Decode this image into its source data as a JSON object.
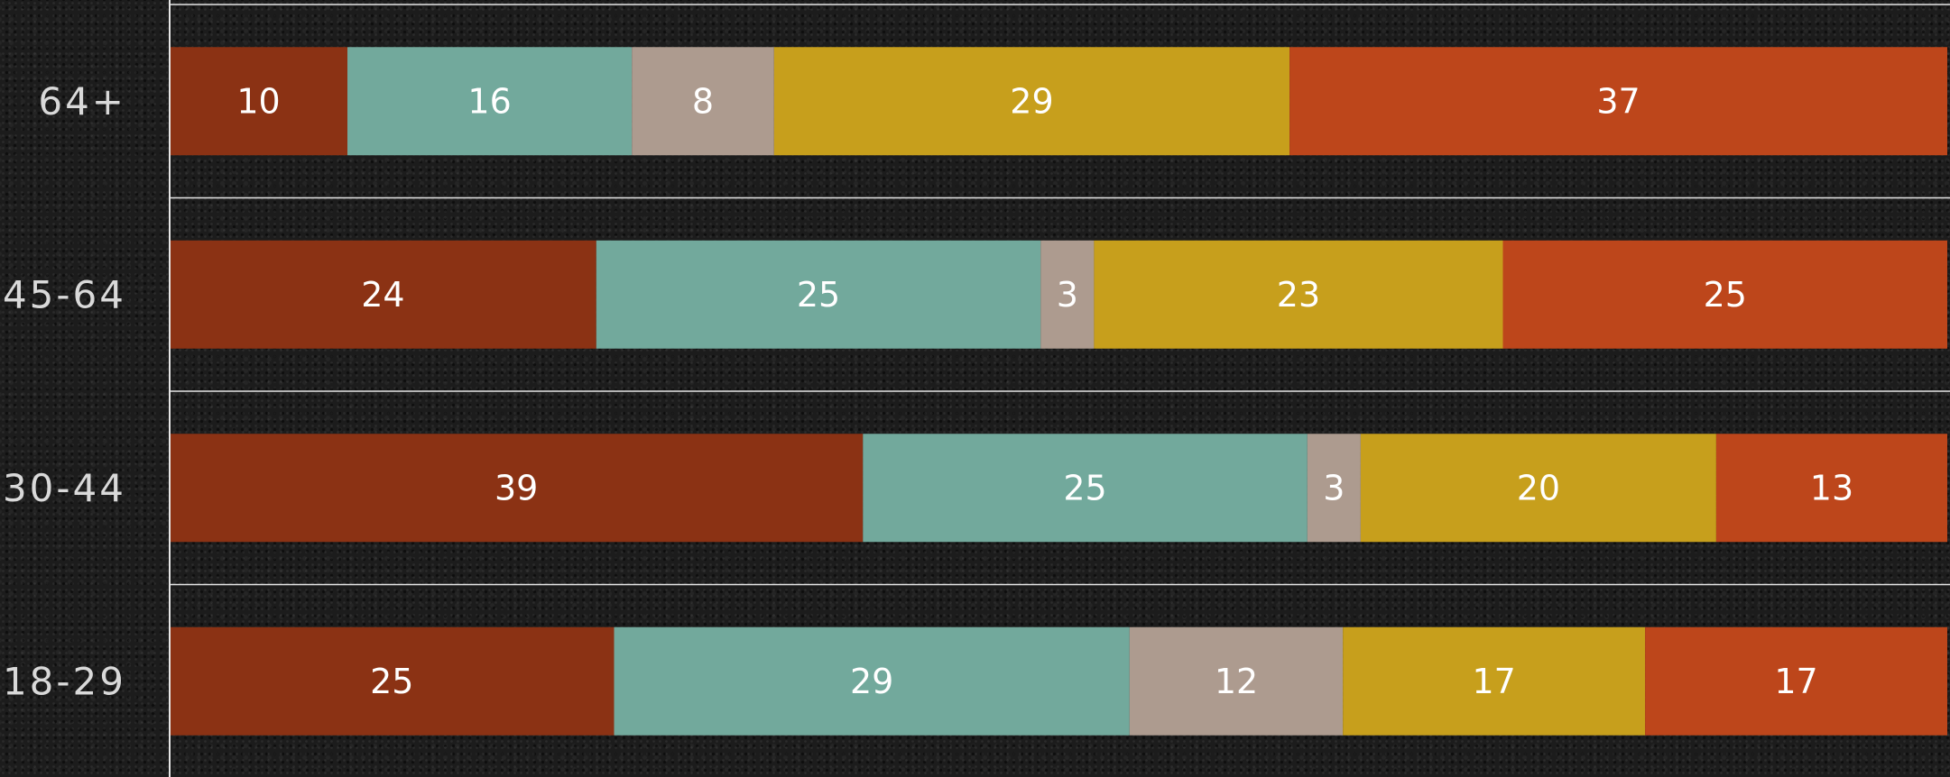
{
  "chart_data": {
    "type": "bar",
    "orientation": "horizontal",
    "stacked": true,
    "categories": [
      "64+",
      "45-64",
      "30-44",
      "18-29"
    ],
    "series": [
      {
        "values": [
          10,
          24,
          39,
          25
        ],
        "color": "#8b3214"
      },
      {
        "values": [
          16,
          25,
          25,
          29
        ],
        "color": "#72a99c"
      },
      {
        "values": [
          8,
          3,
          3,
          12
        ],
        "color": "#ad9b8f"
      },
      {
        "values": [
          29,
          23,
          20,
          17
        ],
        "color": "#c79f1c"
      },
      {
        "values": [
          37,
          25,
          13,
          17
        ],
        "color": "#bd461b"
      }
    ],
    "xlim": [
      0,
      100
    ],
    "grid": true,
    "legend": "none"
  }
}
